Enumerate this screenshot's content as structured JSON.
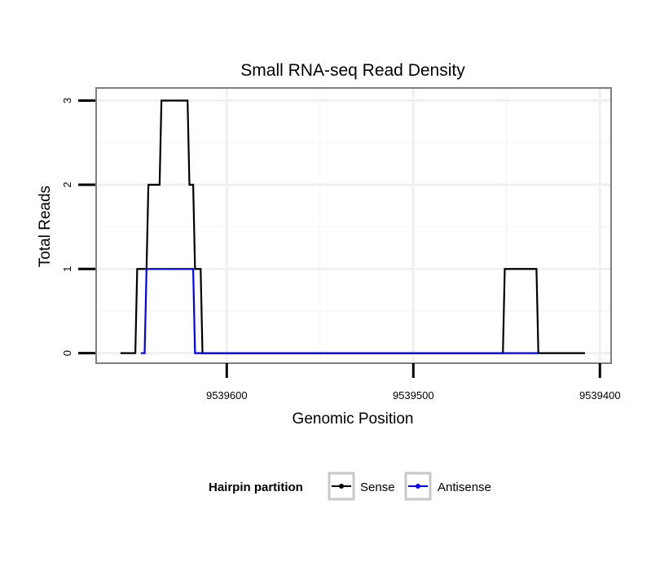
{
  "chart_data": {
    "type": "line",
    "title": "Small RNA-seq Read Density",
    "xlabel": "Genomic Position",
    "ylabel": "Total Reads",
    "x_reversed": true,
    "xlim": [
      9539670,
      9539394
    ],
    "ylim": [
      -0.12,
      3.15
    ],
    "x_ticks": [
      9539600,
      9539500,
      9539400
    ],
    "x_tick_labels": [
      "9539600",
      "9539500",
      "9539400"
    ],
    "y_ticks": [
      0,
      1,
      2,
      3
    ],
    "y_tick_labels": [
      "0",
      "1",
      "2",
      "3"
    ],
    "grid": true,
    "legend": {
      "title": "Hairpin partition",
      "position": "bottom",
      "entries": [
        "Sense",
        "Antisense"
      ]
    },
    "series": [
      {
        "name": "Sense",
        "color": "#000000",
        "points": [
          [
            9539657,
            0
          ],
          [
            9539649,
            0
          ],
          [
            9539648,
            1
          ],
          [
            9539643,
            1
          ],
          [
            9539642,
            2
          ],
          [
            9539636,
            2
          ],
          [
            9539635,
            3
          ],
          [
            9539621,
            3
          ],
          [
            9539620,
            2
          ],
          [
            9539618,
            2
          ],
          [
            9539617,
            1
          ],
          [
            9539614,
            1
          ],
          [
            9539613,
            0
          ],
          [
            9539452,
            0
          ],
          [
            9539451,
            1
          ],
          [
            9539434,
            1
          ],
          [
            9539433,
            0
          ],
          [
            9539408,
            0
          ]
        ]
      },
      {
        "name": "Antisense",
        "color": "#0000ff",
        "points": [
          [
            9539646,
            0
          ],
          [
            9539644,
            0
          ],
          [
            9539643,
            1
          ],
          [
            9539618,
            1
          ],
          [
            9539617,
            0
          ],
          [
            9539613,
            0
          ],
          [
            9539452,
            0
          ],
          [
            9539451,
            0
          ],
          [
            9539433,
            0
          ]
        ]
      }
    ]
  }
}
